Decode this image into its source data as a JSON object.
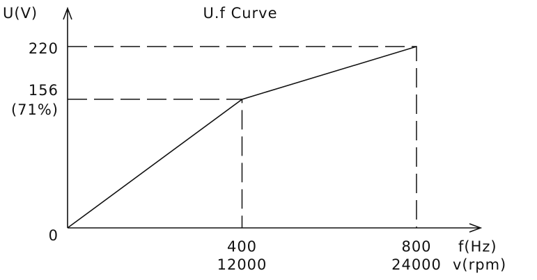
{
  "chart_data": {
    "type": "line",
    "title": "U.f Curve",
    "ylabel": "U(V)",
    "xlabel": "f(Hz)",
    "x2label": "v(rpm)",
    "x": [
      0,
      400,
      800
    ],
    "values": [
      0,
      156,
      220
    ],
    "color": "#111111",
    "xlim": [
      0,
      800
    ],
    "ylim": [
      0,
      220
    ],
    "xticks": [
      400,
      800
    ],
    "x2lim": [
      0,
      24000
    ],
    "x2ticks": [
      12000,
      24000
    ],
    "yticks": [
      0,
      156,
      220
    ],
    "annotations": [
      {
        "text": "(71%)",
        "y": 156
      }
    ]
  }
}
